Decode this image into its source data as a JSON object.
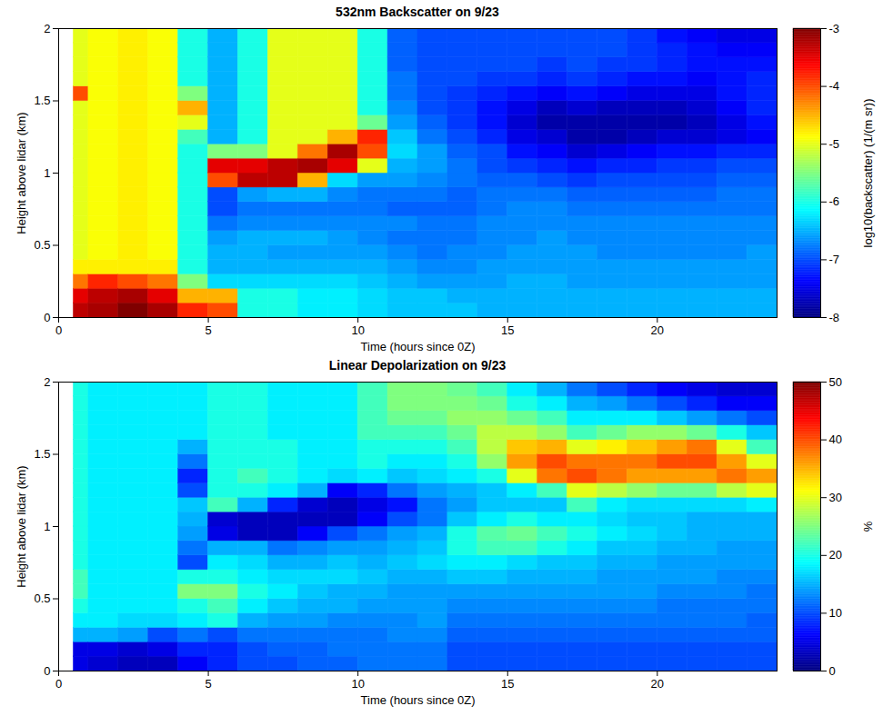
{
  "chart_data": [
    {
      "type": "heatmap",
      "title": "532nm Backscatter on 9/23",
      "x_label": "Time (hours since 0Z)",
      "y_label": "Height above lidar (km)",
      "xlim": [
        0,
        24
      ],
      "xticks": [
        0,
        5,
        10,
        15,
        20
      ],
      "ylim": [
        0,
        2
      ],
      "yticks": [
        0,
        0.5,
        1,
        1.5,
        2
      ],
      "x_edges": [
        0.5,
        1,
        2,
        3,
        4,
        5,
        6,
        7,
        8,
        9,
        10,
        11,
        12,
        13,
        14,
        15,
        16,
        17,
        18,
        19,
        20,
        21,
        22,
        23,
        24
      ],
      "y_edges": [
        0,
        0.1,
        0.2,
        0.3,
        0.4,
        0.5,
        0.6,
        0.7,
        0.8,
        0.9,
        1,
        1.1,
        1.2,
        1.3,
        1.4,
        1.5,
        1.6,
        1.7,
        1.8,
        1.9,
        2
      ],
      "values": [
        [
          -3.3,
          -3.5,
          -4.2,
          -4.8,
          -5,
          -5,
          -5,
          -5,
          -5,
          -5,
          -5,
          -5,
          -5,
          -5,
          -5,
          -4,
          -5,
          -5,
          -5,
          -5
        ],
        [
          -3.2,
          -3.3,
          -3.8,
          -4.8,
          -4.9,
          -4.9,
          -4.9,
          -4.9,
          -4.9,
          -4.9,
          -4.9,
          -4.9,
          -4.9,
          -4.9,
          -4.9,
          -4.9,
          -4.9,
          -4.9,
          -4.9,
          -4.9
        ],
        [
          -3,
          -3.2,
          -4,
          -4.8,
          -4.8,
          -4.8,
          -4.8,
          -4.8,
          -4.8,
          -4.8,
          -4.8,
          -4.8,
          -4.8,
          -4.8,
          -4.8,
          -4.8,
          -4.8,
          -4.8,
          -4.8,
          -4.8
        ],
        [
          -3.2,
          -3.5,
          -4.2,
          -4.8,
          -4.9,
          -4.9,
          -4.9,
          -4.9,
          -4.9,
          -4.9,
          -4.9,
          -4.9,
          -4.9,
          -4.9,
          -4.9,
          -4.9,
          -4.9,
          -4.9,
          -4.9,
          -4.9
        ],
        [
          -3.8,
          -4.5,
          -5.5,
          -6,
          -6,
          -6,
          -6,
          -6,
          -6,
          -6,
          -6,
          -6,
          -5.8,
          -5,
          -4.5,
          -5.5,
          -6,
          -6,
          -6,
          -6
        ],
        [
          -4,
          -4.5,
          -6.3,
          -6.5,
          -6.5,
          -6.6,
          -6.8,
          -7,
          -7,
          -4,
          -3.5,
          -5.5,
          -6.5,
          -6.5,
          -6.5,
          -6.5,
          -6.5,
          -6.5,
          -6.5,
          -6.5
        ],
        [
          -6,
          -6,
          -6.3,
          -6.5,
          -6.5,
          -6.5,
          -6.7,
          -6.8,
          -6.6,
          -3.3,
          -3.5,
          -5.5,
          -6,
          -6,
          -6,
          -6,
          -6,
          -6,
          -6,
          -6
        ],
        [
          -6,
          -6,
          -6.3,
          -6.5,
          -6.6,
          -6.5,
          -6.7,
          -6.8,
          -6.5,
          -3.3,
          -3.3,
          -5,
          -5,
          -5,
          -5,
          -5,
          -5,
          -5,
          -5,
          -5
        ],
        [
          -6.2,
          -6.2,
          -6.3,
          -6.5,
          -6.6,
          -6.5,
          -6.7,
          -6.8,
          -6.5,
          -4.5,
          -3.2,
          -4.2,
          -5,
          -5,
          -5,
          -5,
          -5,
          -5,
          -5,
          -5
        ],
        [
          -6.2,
          -6.2,
          -6.3,
          -6.5,
          -6.6,
          -6.6,
          -6.7,
          -6.8,
          -6.7,
          -6.3,
          -3.5,
          -3.2,
          -4.5,
          -5,
          -5,
          -5,
          -5,
          -5,
          -5,
          -5
        ],
        [
          -6.3,
          -6.3,
          -6.4,
          -6.5,
          -6.6,
          -6.7,
          -6.7,
          -6.8,
          -6.8,
          -6.6,
          -5,
          -4,
          -3.8,
          -5.6,
          -6,
          -6,
          -6,
          -6,
          -6,
          -6
        ],
        [
          -6.4,
          -6.4,
          -6.5,
          -6.6,
          -6.7,
          -6.8,
          -6.7,
          -6.9,
          -6.8,
          -6.6,
          -6.5,
          -6.3,
          -6.4,
          -6.6,
          -6.7,
          -6.8,
          -6.8,
          -6.9,
          -6.9,
          -6.9
        ],
        [
          -6.4,
          -6.4,
          -6.6,
          -6.7,
          -6.8,
          -6.8,
          -6.8,
          -6.9,
          -6.8,
          -6.7,
          -6.6,
          -6.6,
          -6.8,
          -6.9,
          -7,
          -7,
          -7,
          -7,
          -7,
          -7
        ],
        [
          -6.4,
          -6.5,
          -6.6,
          -6.7,
          -6.7,
          -6.8,
          -6.8,
          -6.9,
          -6.9,
          -6.8,
          -6.8,
          -6.9,
          -7,
          -7.1,
          -7.1,
          -7.1,
          -7,
          -7,
          -7,
          -7
        ],
        [
          -6.5,
          -6.5,
          -6.6,
          -6.6,
          -6.7,
          -6.7,
          -6.7,
          -6.8,
          -6.8,
          -6.9,
          -7,
          -7,
          -7.2,
          -7.3,
          -7.3,
          -7.2,
          -7.1,
          -7,
          -7,
          -7
        ],
        [
          -6.5,
          -6.5,
          -6.5,
          -6.6,
          -6.6,
          -6.7,
          -6.7,
          -6.7,
          -6.8,
          -6.9,
          -7.1,
          -7.3,
          -7.5,
          -7.6,
          -7.5,
          -7.3,
          -7.1,
          -7,
          -7,
          -7
        ],
        [
          -6.5,
          -6.5,
          -6.5,
          -6.6,
          -6.6,
          -6.6,
          -6.7,
          -6.7,
          -6.8,
          -7,
          -7.2,
          -7.4,
          -7.6,
          -7.8,
          -7.7,
          -7.4,
          -7.2,
          -7.1,
          -7,
          -7
        ],
        [
          -6.5,
          -6.5,
          -6.6,
          -6.6,
          -6.6,
          -6.7,
          -6.7,
          -6.8,
          -6.9,
          -7.1,
          -7.3,
          -7.6,
          -7.8,
          -7.8,
          -7.6,
          -7.3,
          -7.1,
          -7,
          -7,
          -7
        ],
        [
          -6.5,
          -6.5,
          -6.6,
          -6.6,
          -6.7,
          -6.7,
          -6.7,
          -6.8,
          -6.9,
          -7,
          -7.2,
          -7.5,
          -7.8,
          -7.8,
          -7.7,
          -7.4,
          -7.2,
          -7.1,
          -7,
          -7
        ],
        [
          -6.5,
          -6.5,
          -6.6,
          -6.6,
          -6.7,
          -6.7,
          -6.7,
          -6.8,
          -6.9,
          -7,
          -7.2,
          -7.4,
          -7.7,
          -7.8,
          -7.7,
          -7.5,
          -7.3,
          -7.1,
          -7.1,
          -7.1
        ],
        [
          -6.5,
          -6.5,
          -6.6,
          -6.6,
          -6.7,
          -6.7,
          -6.7,
          -6.8,
          -6.9,
          -7,
          -7.1,
          -7.3,
          -7.6,
          -7.8,
          -7.7,
          -7.5,
          -7.3,
          -7.2,
          -7.2,
          -7.3
        ],
        [
          -6.5,
          -6.5,
          -6.6,
          -6.6,
          -6.7,
          -6.7,
          -6.7,
          -6.8,
          -6.9,
          -7,
          -7.1,
          -7.3,
          -7.6,
          -7.7,
          -7.6,
          -7.5,
          -7.4,
          -7.3,
          -7.3,
          -7.4
        ],
        [
          -6.5,
          -6.5,
          -6.6,
          -6.6,
          -6.7,
          -6.7,
          -6.7,
          -6.8,
          -6.8,
          -6.9,
          -7,
          -7.2,
          -7.5,
          -7.5,
          -7.4,
          -7.3,
          -7.3,
          -7.3,
          -7.4,
          -7.5
        ],
        [
          -6.5,
          -6.5,
          -6.6,
          -6.6,
          -6.6,
          -6.7,
          -6.7,
          -6.8,
          -6.8,
          -6.9,
          -7,
          -7.2,
          -7.4,
          -7.3,
          -7.2,
          -7.2,
          -7.2,
          -7.3,
          -7.4,
          -7.5
        ]
      ],
      "colorbar": {
        "label": "log10(backscatter) (1/(m sr))",
        "range": [
          -8,
          -3
        ],
        "ticks": [
          -8,
          -7,
          -6,
          -5,
          -4,
          -3
        ]
      }
    },
    {
      "type": "heatmap",
      "title": "Linear Depolarization on 9/23",
      "x_label": "Time (hours since 0Z)",
      "y_label": "Height above lidar (km)",
      "xlim": [
        0,
        24
      ],
      "xticks": [
        0,
        5,
        10,
        15,
        20
      ],
      "ylim": [
        0,
        2
      ],
      "yticks": [
        0,
        0.5,
        1,
        1.5,
        2
      ],
      "x_edges": [
        0.5,
        1,
        2,
        3,
        4,
        5,
        6,
        7,
        8,
        9,
        10,
        11,
        12,
        13,
        14,
        15,
        16,
        17,
        18,
        19,
        20,
        21,
        22,
        23,
        24
      ],
      "y_edges": [
        0,
        0.1,
        0.2,
        0.3,
        0.4,
        0.5,
        0.6,
        0.7,
        0.8,
        0.9,
        1,
        1.1,
        1.2,
        1.3,
        1.4,
        1.5,
        1.6,
        1.7,
        1.8,
        1.9,
        2
      ],
      "values": [
        [
          5,
          5,
          15,
          18,
          20,
          22,
          22,
          20,
          20,
          20,
          20,
          20,
          20,
          20,
          20,
          20,
          20,
          20,
          20,
          20
        ],
        [
          4,
          5,
          15,
          18,
          18,
          18,
          18,
          18,
          18,
          18,
          18,
          18,
          18,
          18,
          18,
          18,
          18,
          18,
          18,
          18
        ],
        [
          3,
          4,
          14,
          17,
          18,
          18,
          18,
          18,
          18,
          18,
          18,
          18,
          18,
          18,
          18,
          18,
          18,
          18,
          18,
          18
        ],
        [
          3,
          5,
          10,
          17,
          18,
          18,
          18,
          18,
          18,
          18,
          18,
          18,
          18,
          18,
          18,
          18,
          18,
          18,
          18,
          18
        ],
        [
          6,
          8,
          12,
          18,
          20,
          25,
          20,
          10,
          12,
          14,
          15,
          16,
          10,
          8,
          12,
          15,
          18,
          18,
          18,
          18
        ],
        [
          8,
          8,
          10,
          20,
          22,
          25,
          20,
          18,
          15,
          5,
          4,
          22,
          20,
          20,
          20,
          20,
          20,
          20,
          20,
          20
        ],
        [
          10,
          10,
          12,
          15,
          18,
          20,
          18,
          17,
          15,
          3,
          3,
          15,
          20,
          22,
          20,
          20,
          20,
          20,
          20,
          20
        ],
        [
          10,
          11,
          12,
          14,
          16,
          18,
          17,
          15,
          12,
          3,
          3,
          8,
          18,
          20,
          20,
          20,
          18,
          18,
          18,
          18
        ],
        [
          11,
          11,
          12,
          14,
          15,
          16,
          17,
          15,
          13,
          6,
          3,
          4,
          15,
          18,
          18,
          18,
          18,
          18,
          18,
          18
        ],
        [
          11,
          12,
          12,
          13,
          15,
          15,
          17,
          16,
          14,
          10,
          3,
          3,
          6,
          17,
          18,
          18,
          18,
          18,
          18,
          18
        ],
        [
          12,
          12,
          12,
          13,
          14,
          15,
          16,
          15,
          14,
          12,
          6,
          5,
          8,
          18,
          20,
          20,
          22,
          22,
          22,
          22
        ],
        [
          12,
          12,
          13,
          13,
          14,
          14,
          15,
          16,
          15,
          14,
          10,
          7,
          12,
          16,
          18,
          20,
          22,
          24,
          25,
          25
        ],
        [
          12,
          12,
          13,
          14,
          14,
          14,
          15,
          17,
          16,
          15,
          12,
          12,
          14,
          17,
          18,
          20,
          22,
          24,
          25,
          25
        ],
        [
          10,
          10,
          11,
          12,
          13,
          14,
          16,
          18,
          20,
          20,
          16,
          14,
          15,
          18,
          20,
          22,
          24,
          26,
          25,
          24
        ],
        [
          10,
          10,
          11,
          12,
          13,
          14,
          16,
          18,
          22,
          23,
          18,
          16,
          16,
          20,
          26,
          28,
          28,
          26,
          24,
          22
        ],
        [
          10,
          10,
          11,
          12,
          13,
          14,
          15,
          17,
          22,
          24,
          20,
          16,
          18,
          30,
          36,
          34,
          28,
          24,
          20,
          18
        ],
        [
          10,
          10,
          11,
          12,
          13,
          14,
          15,
          16,
          20,
          22,
          18,
          16,
          22,
          38,
          40,
          35,
          26,
          22,
          18,
          15
        ],
        [
          10,
          10,
          11,
          12,
          13,
          14,
          15,
          16,
          18,
          20,
          18,
          22,
          30,
          40,
          38,
          30,
          22,
          18,
          15,
          12
        ],
        [
          10,
          10,
          11,
          12,
          13,
          14,
          14,
          15,
          16,
          18,
          17,
          18,
          28,
          38,
          38,
          32,
          24,
          18,
          14,
          10
        ],
        [
          10,
          10,
          11,
          12,
          13,
          14,
          14,
          15,
          16,
          17,
          16,
          17,
          26,
          36,
          38,
          34,
          26,
          18,
          12,
          8
        ],
        [
          10,
          10,
          11,
          12,
          12,
          13,
          14,
          14,
          15,
          16,
          16,
          17,
          24,
          36,
          40,
          36,
          26,
          16,
          10,
          6
        ],
        [
          10,
          10,
          11,
          12,
          12,
          13,
          14,
          14,
          15,
          15,
          15,
          17,
          24,
          36,
          40,
          38,
          24,
          14,
          8,
          5
        ],
        [
          10,
          10,
          11,
          12,
          12,
          13,
          13,
          14,
          14,
          15,
          15,
          17,
          28,
          38,
          36,
          30,
          20,
          12,
          6,
          4
        ],
        [
          10,
          10,
          11,
          11,
          12,
          12,
          13,
          14,
          14,
          15,
          15,
          18,
          30,
          36,
          30,
          22,
          16,
          10,
          6,
          4
        ]
      ],
      "colorbar": {
        "label": "%",
        "range": [
          0,
          50
        ],
        "ticks": [
          0,
          10,
          20,
          30,
          40,
          50
        ]
      }
    }
  ]
}
